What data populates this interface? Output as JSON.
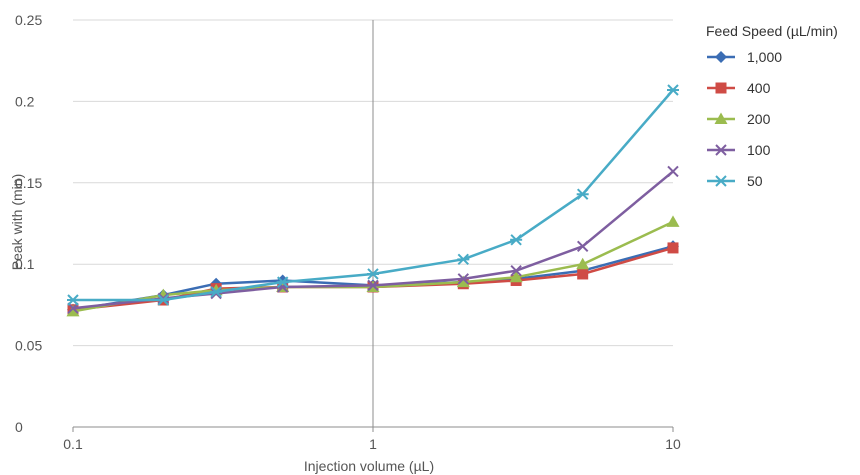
{
  "chart_data": {
    "type": "line",
    "xlabel": "Injection volume (µL)",
    "ylabel": "Peak with (min)",
    "xscale": "log",
    "xlim": [
      0.1,
      10
    ],
    "ylim": [
      0,
      0.25
    ],
    "x_ticks": [
      "0.1",
      "1",
      "10"
    ],
    "y_ticks": [
      "0",
      "0.05",
      "0.1",
      "0.15",
      "0.2",
      "0.25"
    ],
    "grid": "horizontal",
    "legend_title": "Feed Speed (µL/min)",
    "legend_position": "right",
    "x": [
      0.1,
      0.2,
      0.3,
      0.5,
      1,
      2,
      3,
      5,
      10
    ],
    "series": [
      {
        "name": "1,000",
        "color": "#3b6db4",
        "marker": "diamond",
        "values": [
          0.072,
          0.081,
          0.088,
          0.09,
          0.087,
          0.089,
          0.091,
          0.096,
          0.111
        ]
      },
      {
        "name": "400",
        "color": "#cf4b45",
        "marker": "square",
        "values": [
          0.072,
          0.078,
          0.085,
          0.086,
          0.086,
          0.088,
          0.09,
          0.094,
          0.11
        ]
      },
      {
        "name": "200",
        "color": "#9bbc4f",
        "marker": "triangle",
        "values": [
          0.071,
          0.081,
          0.084,
          0.086,
          0.086,
          0.089,
          0.092,
          0.1,
          0.126
        ]
      },
      {
        "name": "100",
        "color": "#7e5ea0",
        "marker": "x",
        "values": [
          0.073,
          0.079,
          0.082,
          0.086,
          0.087,
          0.091,
          0.096,
          0.111,
          0.157
        ]
      },
      {
        "name": "50",
        "color": "#48abc6",
        "marker": "asterisk",
        "values": [
          0.078,
          0.078,
          0.083,
          0.089,
          0.094,
          0.103,
          0.115,
          0.143,
          0.207
        ]
      }
    ]
  }
}
